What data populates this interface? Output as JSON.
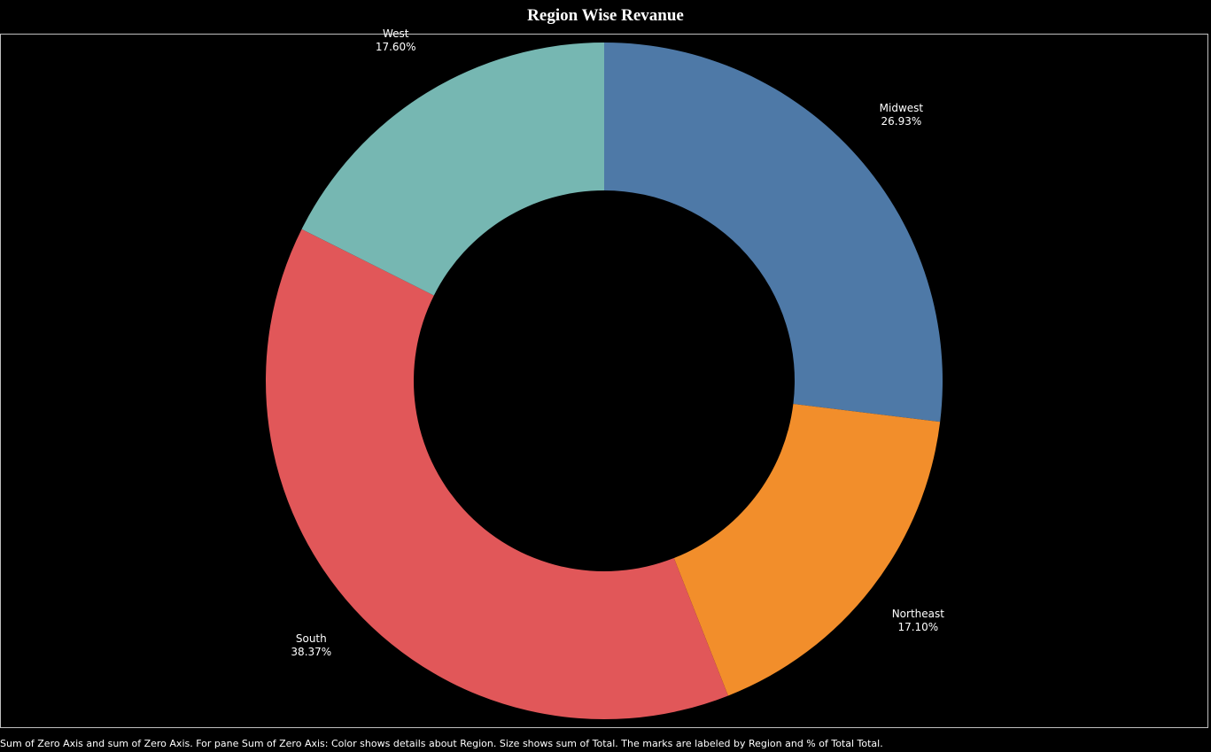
{
  "title": "Region Wise Revanue",
  "caption": "Sum of Zero Axis and sum of Zero Axis.  For pane Sum of Zero Axis:  Color shows details about Region.  Size shows sum of Total.  The marks are labeled by Region and % of Total Total.",
  "chart_data": {
    "type": "pie",
    "variant": "donut",
    "start": "top",
    "direction": "clockwise",
    "slices": [
      {
        "label": "Midwest",
        "pct_label": "26.93%",
        "value": 26.93,
        "color": "#4e79a7"
      },
      {
        "label": "Northeast",
        "pct_label": "17.10%",
        "value": 17.1,
        "color": "#f28e2b"
      },
      {
        "label": "South",
        "pct_label": "38.37%",
        "value": 38.37,
        "color": "#e15759"
      },
      {
        "label": "West",
        "pct_label": "17.60%",
        "value": 17.6,
        "color": "#76b7b2"
      }
    ]
  }
}
